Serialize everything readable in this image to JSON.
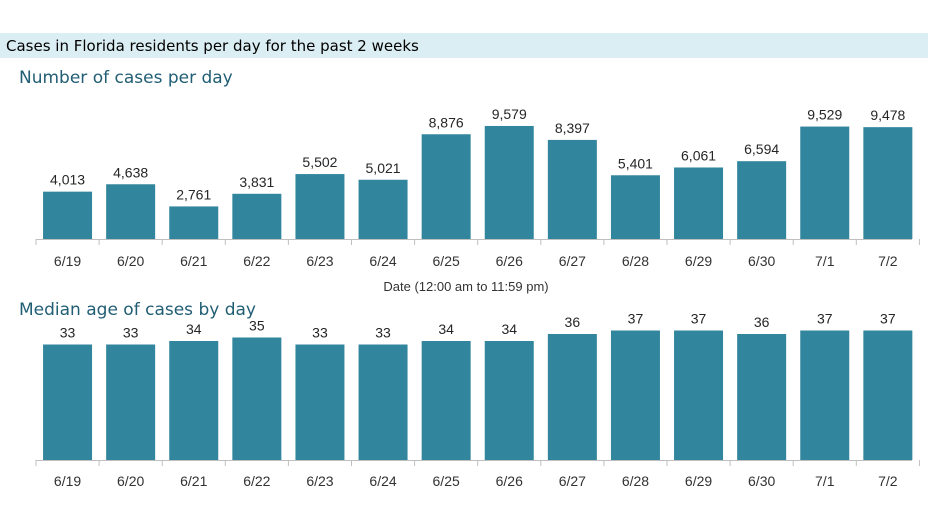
{
  "banner": {
    "title": "Cases in Florida residents per day for the past 2 weeks"
  },
  "colors": {
    "bar": "#31859c",
    "banner_bg": "#dbeef3",
    "subtitle": "#215e74"
  },
  "chart_data": [
    {
      "type": "bar",
      "title": "Number of cases per day",
      "xlabel": "Date (12:00 am to 11:59 pm)",
      "categories": [
        "6/19",
        "6/20",
        "6/21",
        "6/22",
        "6/23",
        "6/24",
        "6/25",
        "6/26",
        "6/27",
        "6/28",
        "6/29",
        "6/30",
        "7/1",
        "7/2"
      ],
      "values": [
        4013,
        4638,
        2761,
        3831,
        5502,
        5021,
        8876,
        9579,
        8397,
        5401,
        6061,
        6594,
        9529,
        9478
      ],
      "value_labels": [
        "4,013",
        "4,638",
        "2,761",
        "3,831",
        "5,502",
        "5,021",
        "8,876",
        "9,579",
        "8,397",
        "5,401",
        "6,061",
        "6,594",
        "9,529",
        "9,478"
      ],
      "ylim": [
        0,
        10000
      ]
    },
    {
      "type": "bar",
      "title": "Median age of cases by day",
      "xlabel": "",
      "categories": [
        "6/19",
        "6/20",
        "6/21",
        "6/22",
        "6/23",
        "6/24",
        "6/25",
        "6/26",
        "6/27",
        "6/28",
        "6/29",
        "6/30",
        "7/1",
        "7/2"
      ],
      "values": [
        33,
        33,
        34,
        35,
        33,
        33,
        34,
        34,
        36,
        37,
        37,
        36,
        37,
        37
      ],
      "value_labels": [
        "33",
        "33",
        "34",
        "35",
        "33",
        "33",
        "34",
        "34",
        "36",
        "37",
        "37",
        "36",
        "37",
        "37"
      ],
      "ylim": [
        0,
        40
      ]
    }
  ]
}
